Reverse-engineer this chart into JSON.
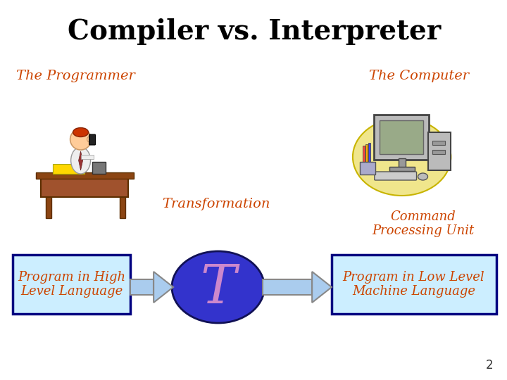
{
  "title": "Compiler vs. Interpreter",
  "title_fontsize": 28,
  "title_fontweight": "bold",
  "title_color": "#000000",
  "label_programmer": "The Programmer",
  "label_computer": "The Computer",
  "label_transformation": "Transformation",
  "label_command": "Command\nProcessing Unit",
  "label_high": "Program in High\nLevel Language",
  "label_low": "Program in Low Level\nMachine Language",
  "label_T": "T",
  "orange_color": "#CC4400",
  "box_bg": "#CCEEFF",
  "box_border": "#000080",
  "ellipse_color": "#3333CC",
  "T_color": "#CC88CC",
  "arrow_color": "#AACCEE",
  "arrow_border": "#888888",
  "slide_bg": "#FFFFFF",
  "page_number": "2",
  "page_num_color": "#333333"
}
